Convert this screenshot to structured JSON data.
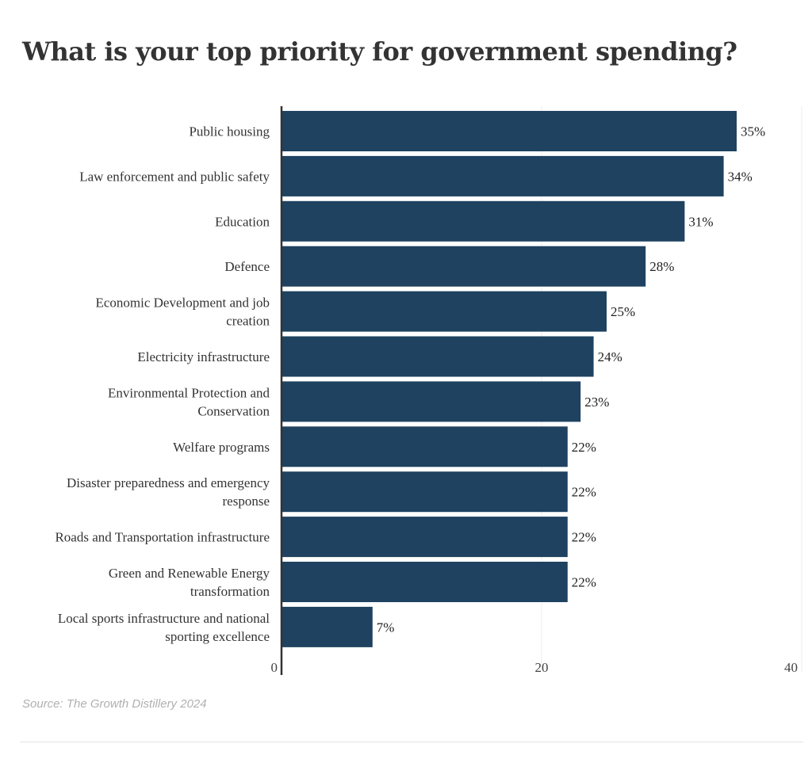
{
  "chart_data": {
    "type": "bar",
    "orientation": "horizontal",
    "title": "What is your top priority for government spending?",
    "categories": [
      "Public housing",
      "Law enforcement and public safety",
      "Education",
      "Defence",
      "Economic Development and job creation",
      "Electricity infrastructure",
      "Environmental Protection and Conservation",
      "Welfare programs",
      "Disaster preparedness and emergency response",
      "Roads and Transportation infrastructure",
      "Green and Renewable Energy transformation",
      "Local sports infrastructure and national sporting excellence"
    ],
    "category_lines": [
      [
        "Public housing"
      ],
      [
        "Law enforcement and public safety"
      ],
      [
        "Education"
      ],
      [
        "Defence"
      ],
      [
        "Economic Development and job",
        "creation"
      ],
      [
        "Electricity infrastructure"
      ],
      [
        "Environmental Protection and",
        "Conservation"
      ],
      [
        "Welfare programs"
      ],
      [
        "Disaster preparedness and emergency",
        "response"
      ],
      [
        "Roads and Transportation infrastructure"
      ],
      [
        "Green and Renewable Energy",
        "transformation"
      ],
      [
        "Local sports infrastructure and national",
        "sporting excellence"
      ]
    ],
    "values": [
      35,
      34,
      31,
      28,
      25,
      24,
      23,
      22,
      22,
      22,
      22,
      7
    ],
    "value_labels": [
      "35%",
      "34%",
      "31%",
      "28%",
      "25%",
      "24%",
      "23%",
      "22%",
      "22%",
      "22%",
      "22%",
      "7%"
    ],
    "xlim": [
      0,
      39
    ],
    "x_ticks": [
      0,
      20,
      40
    ],
    "x_tick_labels": [
      "0",
      "20",
      "40"
    ],
    "grid": true,
    "bar_color": "#1e4260",
    "xlabel": "",
    "ylabel": ""
  },
  "source": "Source: The Growth Distillery 2024"
}
